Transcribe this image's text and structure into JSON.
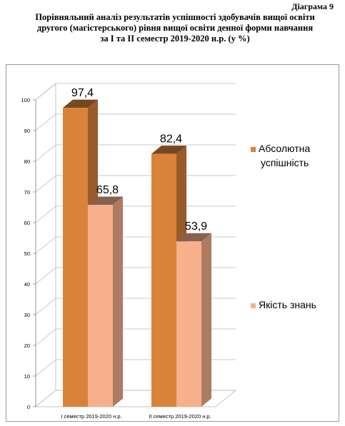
{
  "diagram_label": "Діаграма 9",
  "title_lines": [
    "Порівняльний аналіз результатів успішності здобувачів вищої освіти",
    "другого (магістерського) рівня вищої освіти денної форми навчання",
    "за І та ІІ семестр 2019-2020 н.р. (у %)"
  ],
  "chart_data": {
    "type": "bar",
    "title": "Порівняльний аналіз результатів успішності здобувачів вищої освіти другого (магістерського) рівня вищої освіти денної форми навчання за І та ІІ семестр 2019-2020 н.р. (у %)",
    "categories": [
      "І семестр  2019-2020 н.р.",
      "ІІ семестр  2019-2020 н.р."
    ],
    "series": [
      {
        "name": "Абсолютна успішність",
        "values": [
          97.4,
          82.4
        ],
        "labels": [
          "97,4",
          "82,4"
        ],
        "color": "#D9823A"
      },
      {
        "name": "Якість знань",
        "values": [
          65.8,
          53.9
        ],
        "labels": [
          "65,8",
          "53,9"
        ],
        "color": "#F6B08C"
      }
    ],
    "ylim": [
      0,
      100
    ],
    "yticks": [
      0,
      10,
      20,
      30,
      40,
      50,
      60,
      70,
      80,
      90,
      100
    ],
    "legend_lines": [
      [
        "Абсолютна",
        "успішність"
      ],
      [
        "Якість знань"
      ]
    ],
    "grid": true,
    "three_d": true,
    "legend_position": "right"
  }
}
